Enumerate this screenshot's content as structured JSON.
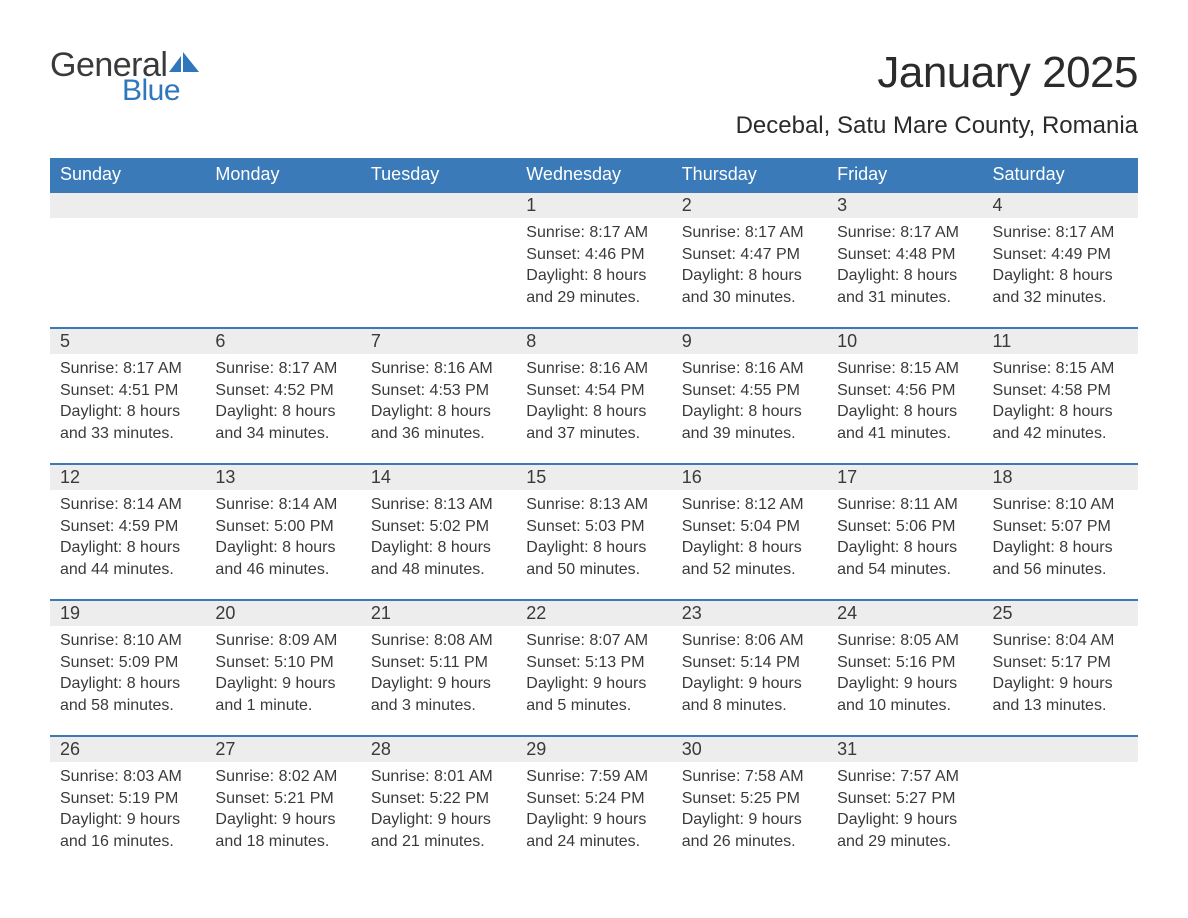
{
  "brand": {
    "word1": "General",
    "word2": "Blue"
  },
  "colors": {
    "brand_blue": "#2f76bb",
    "header_bg": "#3a7ab8",
    "header_text": "#ffffff",
    "daynum_bg": "#ededed",
    "row_border": "#3a7ab8",
    "page_bg": "#ffffff",
    "text": "#3a3a3a"
  },
  "typography": {
    "month_title_fontsize": 44,
    "location_fontsize": 24,
    "th_fontsize": 18,
    "daynum_fontsize": 18,
    "cell_fontsize": 16
  },
  "title": "January 2025",
  "location": "Decebal, Satu Mare County, Romania",
  "weekdays": [
    "Sunday",
    "Monday",
    "Tuesday",
    "Wednesday",
    "Thursday",
    "Friday",
    "Saturday"
  ],
  "weeks": [
    [
      null,
      null,
      null,
      {
        "n": "1",
        "sunrise": "Sunrise: 8:17 AM",
        "sunset": "Sunset: 4:46 PM",
        "d1": "Daylight: 8 hours",
        "d2": "and 29 minutes."
      },
      {
        "n": "2",
        "sunrise": "Sunrise: 8:17 AM",
        "sunset": "Sunset: 4:47 PM",
        "d1": "Daylight: 8 hours",
        "d2": "and 30 minutes."
      },
      {
        "n": "3",
        "sunrise": "Sunrise: 8:17 AM",
        "sunset": "Sunset: 4:48 PM",
        "d1": "Daylight: 8 hours",
        "d2": "and 31 minutes."
      },
      {
        "n": "4",
        "sunrise": "Sunrise: 8:17 AM",
        "sunset": "Sunset: 4:49 PM",
        "d1": "Daylight: 8 hours",
        "d2": "and 32 minutes."
      }
    ],
    [
      {
        "n": "5",
        "sunrise": "Sunrise: 8:17 AM",
        "sunset": "Sunset: 4:51 PM",
        "d1": "Daylight: 8 hours",
        "d2": "and 33 minutes."
      },
      {
        "n": "6",
        "sunrise": "Sunrise: 8:17 AM",
        "sunset": "Sunset: 4:52 PM",
        "d1": "Daylight: 8 hours",
        "d2": "and 34 minutes."
      },
      {
        "n": "7",
        "sunrise": "Sunrise: 8:16 AM",
        "sunset": "Sunset: 4:53 PM",
        "d1": "Daylight: 8 hours",
        "d2": "and 36 minutes."
      },
      {
        "n": "8",
        "sunrise": "Sunrise: 8:16 AM",
        "sunset": "Sunset: 4:54 PM",
        "d1": "Daylight: 8 hours",
        "d2": "and 37 minutes."
      },
      {
        "n": "9",
        "sunrise": "Sunrise: 8:16 AM",
        "sunset": "Sunset: 4:55 PM",
        "d1": "Daylight: 8 hours",
        "d2": "and 39 minutes."
      },
      {
        "n": "10",
        "sunrise": "Sunrise: 8:15 AM",
        "sunset": "Sunset: 4:56 PM",
        "d1": "Daylight: 8 hours",
        "d2": "and 41 minutes."
      },
      {
        "n": "11",
        "sunrise": "Sunrise: 8:15 AM",
        "sunset": "Sunset: 4:58 PM",
        "d1": "Daylight: 8 hours",
        "d2": "and 42 minutes."
      }
    ],
    [
      {
        "n": "12",
        "sunrise": "Sunrise: 8:14 AM",
        "sunset": "Sunset: 4:59 PM",
        "d1": "Daylight: 8 hours",
        "d2": "and 44 minutes."
      },
      {
        "n": "13",
        "sunrise": "Sunrise: 8:14 AM",
        "sunset": "Sunset: 5:00 PM",
        "d1": "Daylight: 8 hours",
        "d2": "and 46 minutes."
      },
      {
        "n": "14",
        "sunrise": "Sunrise: 8:13 AM",
        "sunset": "Sunset: 5:02 PM",
        "d1": "Daylight: 8 hours",
        "d2": "and 48 minutes."
      },
      {
        "n": "15",
        "sunrise": "Sunrise: 8:13 AM",
        "sunset": "Sunset: 5:03 PM",
        "d1": "Daylight: 8 hours",
        "d2": "and 50 minutes."
      },
      {
        "n": "16",
        "sunrise": "Sunrise: 8:12 AM",
        "sunset": "Sunset: 5:04 PM",
        "d1": "Daylight: 8 hours",
        "d2": "and 52 minutes."
      },
      {
        "n": "17",
        "sunrise": "Sunrise: 8:11 AM",
        "sunset": "Sunset: 5:06 PM",
        "d1": "Daylight: 8 hours",
        "d2": "and 54 minutes."
      },
      {
        "n": "18",
        "sunrise": "Sunrise: 8:10 AM",
        "sunset": "Sunset: 5:07 PM",
        "d1": "Daylight: 8 hours",
        "d2": "and 56 minutes."
      }
    ],
    [
      {
        "n": "19",
        "sunrise": "Sunrise: 8:10 AM",
        "sunset": "Sunset: 5:09 PM",
        "d1": "Daylight: 8 hours",
        "d2": "and 58 minutes."
      },
      {
        "n": "20",
        "sunrise": "Sunrise: 8:09 AM",
        "sunset": "Sunset: 5:10 PM",
        "d1": "Daylight: 9 hours",
        "d2": "and 1 minute."
      },
      {
        "n": "21",
        "sunrise": "Sunrise: 8:08 AM",
        "sunset": "Sunset: 5:11 PM",
        "d1": "Daylight: 9 hours",
        "d2": "and 3 minutes."
      },
      {
        "n": "22",
        "sunrise": "Sunrise: 8:07 AM",
        "sunset": "Sunset: 5:13 PM",
        "d1": "Daylight: 9 hours",
        "d2": "and 5 minutes."
      },
      {
        "n": "23",
        "sunrise": "Sunrise: 8:06 AM",
        "sunset": "Sunset: 5:14 PM",
        "d1": "Daylight: 9 hours",
        "d2": "and 8 minutes."
      },
      {
        "n": "24",
        "sunrise": "Sunrise: 8:05 AM",
        "sunset": "Sunset: 5:16 PM",
        "d1": "Daylight: 9 hours",
        "d2": "and 10 minutes."
      },
      {
        "n": "25",
        "sunrise": "Sunrise: 8:04 AM",
        "sunset": "Sunset: 5:17 PM",
        "d1": "Daylight: 9 hours",
        "d2": "and 13 minutes."
      }
    ],
    [
      {
        "n": "26",
        "sunrise": "Sunrise: 8:03 AM",
        "sunset": "Sunset: 5:19 PM",
        "d1": "Daylight: 9 hours",
        "d2": "and 16 minutes."
      },
      {
        "n": "27",
        "sunrise": "Sunrise: 8:02 AM",
        "sunset": "Sunset: 5:21 PM",
        "d1": "Daylight: 9 hours",
        "d2": "and 18 minutes."
      },
      {
        "n": "28",
        "sunrise": "Sunrise: 8:01 AM",
        "sunset": "Sunset: 5:22 PM",
        "d1": "Daylight: 9 hours",
        "d2": "and 21 minutes."
      },
      {
        "n": "29",
        "sunrise": "Sunrise: 7:59 AM",
        "sunset": "Sunset: 5:24 PM",
        "d1": "Daylight: 9 hours",
        "d2": "and 24 minutes."
      },
      {
        "n": "30",
        "sunrise": "Sunrise: 7:58 AM",
        "sunset": "Sunset: 5:25 PM",
        "d1": "Daylight: 9 hours",
        "d2": "and 26 minutes."
      },
      {
        "n": "31",
        "sunrise": "Sunrise: 7:57 AM",
        "sunset": "Sunset: 5:27 PM",
        "d1": "Daylight: 9 hours",
        "d2": "and 29 minutes."
      },
      null
    ]
  ]
}
